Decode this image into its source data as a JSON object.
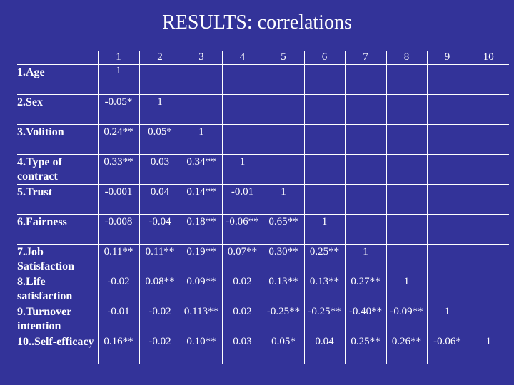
{
  "title": "RESULTS: correlations",
  "columns": [
    "1",
    "2",
    "3",
    "4",
    "5",
    "6",
    "7",
    "8",
    "9",
    "10"
  ],
  "rows": [
    {
      "label": "1.Age",
      "values": [
        "1",
        "",
        "",
        "",
        "",
        "",
        "",
        "",
        "",
        ""
      ]
    },
    {
      "label": "2.Sex",
      "values": [
        "-0.05*",
        "1",
        "",
        "",
        "",
        "",
        "",
        "",
        "",
        ""
      ]
    },
    {
      "label": "3.Volition",
      "values": [
        "0.24**",
        "0.05*",
        "1",
        "",
        "",
        "",
        "",
        "",
        "",
        ""
      ]
    },
    {
      "label": "4.Type of contract",
      "values": [
        "0.33**",
        "0.03",
        "0.34**",
        "1",
        "",
        "",
        "",
        "",
        "",
        ""
      ]
    },
    {
      "label": "5.Trust",
      "values": [
        "-0.001",
        "0.04",
        "0.14**",
        "-0.01",
        "1",
        "",
        "",
        "",
        "",
        ""
      ]
    },
    {
      "label": "6.Fairness",
      "values": [
        "-0.008",
        "-0.04",
        "0.18**",
        "-0.06**",
        "0.65**",
        "1",
        "",
        "",
        "",
        ""
      ]
    },
    {
      "label": "7.Job Satisfaction",
      "values": [
        "0.11**",
        "0.11**",
        "0.19**",
        "0.07**",
        "0.30**",
        "0.25**",
        "1",
        "",
        "",
        ""
      ]
    },
    {
      "label": "8.Life satisfaction",
      "values": [
        "-0.02",
        "0.08**",
        "0.09**",
        "0.02",
        "0.13**",
        "0.13**",
        "0.27**",
        "1",
        "",
        ""
      ]
    },
    {
      "label": "9.Turnover intention",
      "values": [
        "-0.01",
        "-0.02",
        "0.113**",
        "0.02",
        "-0.25**",
        "-0.25**",
        "-0.40**",
        "-0.09**",
        "1",
        ""
      ]
    },
    {
      "label": "10..Self-efficacy",
      "values": [
        "0.16**",
        "-0.02",
        "0.10**",
        "0.03",
        "0.05*",
        "0.04",
        "0.25**",
        "0.26**",
        "-0.06*",
        "1"
      ]
    }
  ],
  "colors": {
    "background": "#333399",
    "text": "#ffffff"
  }
}
